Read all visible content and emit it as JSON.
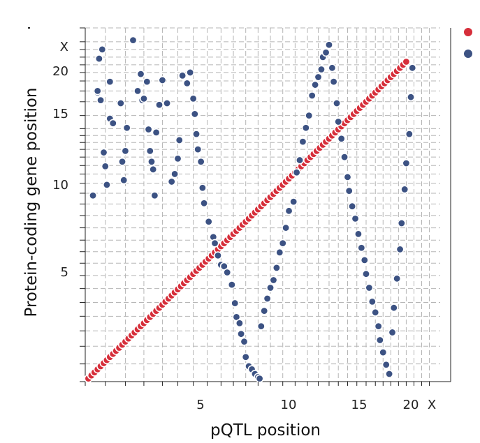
{
  "chart_data": {
    "type": "scatter",
    "xlabel": "pQTL position",
    "ylabel": "Protein-coding gene position",
    "x_tick_labels": [
      "5",
      "10",
      "15",
      "20",
      "X"
    ],
    "y_tick_labels": [
      "5",
      "10",
      "15",
      "20",
      "X"
    ],
    "axis_range": [
      0,
      23
    ],
    "grid": true,
    "legend_placement": "top-right",
    "series": [
      {
        "color": "#d62e3a",
        "points": [
          [
            0.2,
            0.2
          ],
          [
            0.4,
            0.4
          ],
          [
            0.6,
            0.6
          ],
          [
            0.8,
            0.8
          ],
          [
            1.0,
            1.0
          ],
          [
            1.2,
            1.2
          ],
          [
            1.4,
            1.4
          ],
          [
            1.6,
            1.6
          ],
          [
            1.8,
            1.8
          ],
          [
            2.0,
            2.0
          ],
          [
            2.2,
            2.2
          ],
          [
            2.4,
            2.4
          ],
          [
            2.6,
            2.6
          ],
          [
            2.8,
            2.8
          ],
          [
            3.0,
            3.0
          ],
          [
            3.2,
            3.2
          ],
          [
            3.4,
            3.4
          ],
          [
            3.6,
            3.6
          ],
          [
            3.8,
            3.8
          ],
          [
            4.0,
            4.0
          ],
          [
            4.2,
            4.2
          ],
          [
            4.4,
            4.4
          ],
          [
            4.6,
            4.6
          ],
          [
            4.8,
            4.8
          ],
          [
            5.0,
            5.0
          ],
          [
            5.2,
            5.2
          ],
          [
            5.4,
            5.4
          ],
          [
            5.6,
            5.6
          ],
          [
            5.8,
            5.8
          ],
          [
            6.0,
            6.0
          ],
          [
            6.2,
            6.2
          ],
          [
            6.4,
            6.4
          ],
          [
            6.6,
            6.6
          ],
          [
            6.8,
            6.8
          ],
          [
            7.0,
            7.0
          ],
          [
            7.2,
            7.2
          ],
          [
            7.4,
            7.4
          ],
          [
            7.6,
            7.6
          ],
          [
            7.8,
            7.8
          ],
          [
            8.0,
            8.0
          ],
          [
            8.2,
            8.2
          ],
          [
            8.4,
            8.4
          ],
          [
            8.6,
            8.6
          ],
          [
            8.8,
            8.8
          ],
          [
            9.0,
            9.0
          ],
          [
            9.2,
            9.2
          ],
          [
            9.4,
            9.4
          ],
          [
            9.6,
            9.6
          ],
          [
            9.8,
            9.8
          ],
          [
            10.0,
            10.0
          ],
          [
            10.2,
            10.2
          ],
          [
            10.4,
            10.4
          ],
          [
            10.6,
            10.6
          ],
          [
            10.8,
            10.8
          ],
          [
            11.0,
            11.0
          ],
          [
            11.2,
            11.2
          ],
          [
            11.4,
            11.4
          ],
          [
            11.6,
            11.6
          ],
          [
            11.8,
            11.8
          ],
          [
            12.0,
            12.0
          ],
          [
            12.2,
            12.2
          ],
          [
            12.4,
            12.4
          ],
          [
            12.6,
            12.6
          ],
          [
            12.8,
            12.8
          ],
          [
            13.0,
            13.0
          ],
          [
            13.2,
            13.2
          ],
          [
            13.4,
            13.4
          ],
          [
            13.6,
            13.6
          ],
          [
            13.8,
            13.8
          ],
          [
            14.0,
            14.0
          ],
          [
            14.2,
            14.2
          ],
          [
            14.4,
            14.4
          ],
          [
            14.6,
            14.6
          ],
          [
            14.8,
            14.8
          ],
          [
            15.0,
            15.0
          ],
          [
            15.2,
            15.2
          ],
          [
            15.4,
            15.4
          ],
          [
            15.6,
            15.6
          ],
          [
            15.8,
            15.8
          ],
          [
            16.0,
            16.0
          ],
          [
            16.2,
            16.2
          ],
          [
            16.4,
            16.4
          ],
          [
            16.6,
            16.6
          ],
          [
            16.8,
            16.8
          ],
          [
            17.0,
            17.0
          ],
          [
            17.2,
            17.2
          ],
          [
            17.4,
            17.4
          ],
          [
            17.6,
            17.6
          ],
          [
            17.8,
            17.8
          ],
          [
            18.0,
            18.0
          ],
          [
            18.2,
            18.2
          ],
          [
            18.4,
            18.4
          ],
          [
            18.6,
            18.6
          ],
          [
            18.8,
            18.8
          ],
          [
            19.0,
            19.0
          ],
          [
            19.2,
            19.2
          ],
          [
            19.4,
            19.4
          ],
          [
            19.6,
            19.6
          ],
          [
            19.8,
            19.8
          ],
          [
            20.0,
            20.0
          ],
          [
            20.2,
            20.2
          ],
          [
            20.4,
            20.4
          ],
          [
            20.6,
            20.6
          ],
          [
            20.8,
            20.8
          ]
        ]
      },
      {
        "color": "#3c5283",
        "points": [
          [
            0.5,
            12.1
          ],
          [
            0.8,
            18.8
          ],
          [
            0.8,
            18.9
          ],
          [
            1.0,
            18.3
          ],
          [
            0.9,
            21.0
          ],
          [
            1.1,
            21.6
          ],
          [
            1.3,
            14.0
          ],
          [
            1.4,
            12.8
          ],
          [
            1.6,
            19.5
          ],
          [
            1.2,
            14.9
          ],
          [
            1.6,
            17.1
          ],
          [
            1.8,
            16.8
          ],
          [
            2.3,
            18.1
          ],
          [
            2.4,
            14.3
          ],
          [
            2.5,
            13.1
          ],
          [
            2.6,
            15.0
          ],
          [
            2.7,
            16.5
          ],
          [
            3.1,
            22.2
          ],
          [
            3.4,
            18.9
          ],
          [
            3.6,
            20.0
          ],
          [
            3.7,
            18.3
          ],
          [
            3.8,
            18.4
          ],
          [
            4.0,
            19.5
          ],
          [
            4.1,
            16.4
          ],
          [
            4.2,
            15.0
          ],
          [
            4.3,
            14.3
          ],
          [
            4.4,
            13.8
          ],
          [
            4.5,
            12.1
          ],
          [
            4.6,
            16.2
          ],
          [
            4.8,
            18.0
          ],
          [
            5.0,
            19.6
          ],
          [
            5.3,
            18.1
          ],
          [
            5.6,
            13.0
          ],
          [
            5.8,
            13.5
          ],
          [
            6.0,
            14.5
          ],
          [
            6.1,
            15.7
          ],
          [
            6.3,
            19.9
          ],
          [
            6.6,
            19.4
          ],
          [
            6.8,
            20.1
          ],
          [
            7.0,
            18.4
          ],
          [
            7.1,
            17.4
          ],
          [
            7.2,
            16.1
          ],
          [
            7.3,
            15.1
          ],
          [
            7.5,
            14.3
          ],
          [
            7.6,
            12.6
          ],
          [
            7.7,
            11.6
          ],
          [
            8.0,
            10.4
          ],
          [
            8.3,
            9.4
          ],
          [
            8.4,
            9.0
          ],
          [
            8.6,
            8.2
          ],
          [
            8.8,
            7.6
          ],
          [
            9.0,
            7.5
          ],
          [
            9.2,
            7.1
          ],
          [
            9.5,
            6.3
          ],
          [
            9.7,
            5.1
          ],
          [
            9.8,
            4.2
          ],
          [
            10.0,
            3.8
          ],
          [
            10.1,
            3.1
          ],
          [
            10.3,
            2.6
          ],
          [
            10.4,
            1.6
          ],
          [
            10.6,
            1.0
          ],
          [
            10.8,
            0.8
          ],
          [
            11.0,
            0.5
          ],
          [
            11.2,
            0.3
          ],
          [
            11.3,
            0.2
          ],
          [
            11.4,
            3.6
          ],
          [
            11.6,
            4.6
          ],
          [
            11.8,
            5.4
          ],
          [
            12.0,
            6.1
          ],
          [
            12.2,
            6.6
          ],
          [
            12.4,
            7.4
          ],
          [
            12.6,
            8.4
          ],
          [
            12.8,
            9.0
          ],
          [
            13.0,
            10.0
          ],
          [
            13.2,
            11.1
          ],
          [
            13.5,
            11.7
          ],
          [
            13.7,
            13.6
          ],
          [
            13.9,
            14.4
          ],
          [
            14.1,
            15.6
          ],
          [
            14.3,
            16.5
          ],
          [
            14.5,
            17.3
          ],
          [
            14.7,
            18.6
          ],
          [
            14.9,
            19.3
          ],
          [
            15.1,
            19.8
          ],
          [
            15.3,
            20.3
          ],
          [
            15.4,
            21.1
          ],
          [
            15.6,
            21.4
          ],
          [
            15.8,
            21.9
          ],
          [
            16.0,
            20.4
          ],
          [
            16.1,
            19.5
          ],
          [
            16.3,
            18.1
          ],
          [
            16.4,
            16.9
          ],
          [
            16.6,
            15.8
          ],
          [
            16.8,
            14.6
          ],
          [
            17.0,
            13.3
          ],
          [
            17.1,
            12.4
          ],
          [
            17.3,
            11.4
          ],
          [
            17.5,
            10.6
          ],
          [
            17.7,
            9.6
          ],
          [
            17.9,
            8.7
          ],
          [
            18.1,
            7.9
          ],
          [
            18.2,
            7.0
          ],
          [
            18.4,
            6.1
          ],
          [
            18.6,
            5.2
          ],
          [
            18.8,
            4.5
          ],
          [
            19.0,
            3.6
          ],
          [
            19.1,
            2.7
          ],
          [
            19.3,
            1.9
          ],
          [
            19.5,
            1.1
          ],
          [
            19.7,
            0.5
          ],
          [
            19.9,
            3.2
          ],
          [
            20.0,
            4.8
          ],
          [
            20.2,
            6.7
          ],
          [
            20.4,
            8.6
          ],
          [
            20.5,
            10.3
          ],
          [
            20.7,
            12.5
          ],
          [
            20.8,
            14.2
          ],
          [
            21.0,
            16.1
          ],
          [
            21.1,
            18.5
          ],
          [
            21.2,
            20.4
          ]
        ]
      }
    ]
  }
}
